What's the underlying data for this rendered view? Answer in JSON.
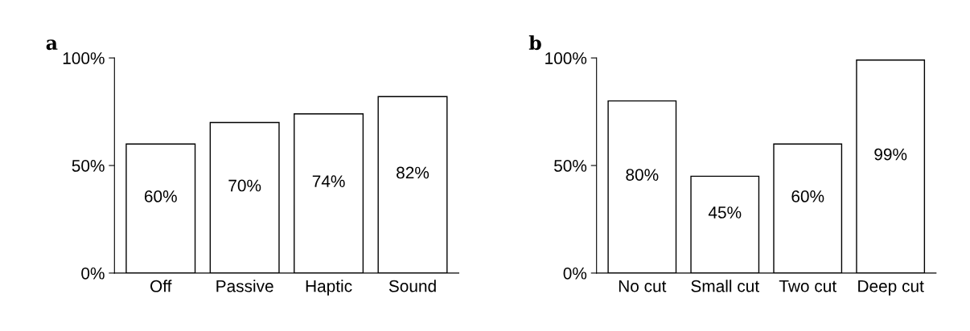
{
  "chart_data": [
    {
      "type": "bar",
      "title": "a",
      "categories": [
        "Off",
        "Passive",
        "Haptic",
        "Sound"
      ],
      "values": [
        60,
        70,
        74,
        82
      ],
      "value_labels": [
        "60%",
        "70%",
        "74%",
        "82%"
      ],
      "color": "#ffffff",
      "ylim": [
        0,
        100
      ],
      "yticks": [
        {
          "value": 0,
          "label": "0%"
        },
        {
          "value": 50,
          "label": "50%"
        },
        {
          "value": 100,
          "label": "100%"
        }
      ],
      "grid": false,
      "legend": false
    },
    {
      "type": "bar",
      "title": "b",
      "categories": [
        "No cut",
        "Small cut",
        "Two cut",
        "Deep cut"
      ],
      "values": [
        80,
        45,
        60,
        99
      ],
      "value_labels": [
        "80%",
        "45%",
        "60%",
        "99%"
      ],
      "color": "#ffffff",
      "ylim": [
        0,
        100
      ],
      "yticks": [
        {
          "value": 0,
          "label": "0%"
        },
        {
          "value": 50,
          "label": "50%"
        },
        {
          "value": 100,
          "label": "100%"
        }
      ],
      "grid": false,
      "legend": false
    }
  ]
}
